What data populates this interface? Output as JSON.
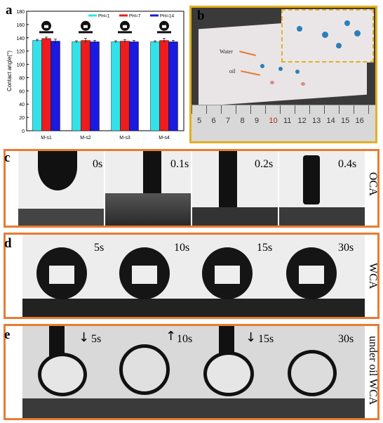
{
  "panel_a": {
    "letter": "a",
    "chart_data": {
      "type": "bar",
      "categories": [
        "M-s1",
        "M-s2",
        "M-s3",
        "M-s4"
      ],
      "series": [
        {
          "name": "PH=1",
          "color": "#33e1e8",
          "values": [
            136,
            134,
            134,
            134
          ],
          "errors": [
            1.5,
            1.5,
            1.5,
            1.5
          ]
        },
        {
          "name": "PH=7",
          "color": "#ee1c1c",
          "values": [
            139,
            136,
            135,
            136
          ],
          "errors": [
            2,
            3,
            2,
            3
          ]
        },
        {
          "name": "PH=14",
          "color": "#1a1ae0",
          "values": [
            135,
            134,
            134,
            134
          ],
          "errors": [
            3,
            2,
            2,
            2
          ]
        }
      ],
      "ylabel": "Contact angle(°)",
      "ylim": [
        0,
        180
      ],
      "yticks": [
        0,
        20,
        40,
        60,
        80,
        100,
        120,
        140,
        160,
        180
      ],
      "legend_position": "top-right"
    }
  },
  "panel_b": {
    "letter": "b",
    "water_label": "Water",
    "oil_label": "oil",
    "ruler_numbers": [
      "5",
      "6",
      "7",
      "8",
      "9",
      "10",
      "11",
      "12",
      "13",
      "14",
      "15",
      "16"
    ]
  },
  "panel_c": {
    "letter": "c",
    "times": [
      "0s",
      "0.1s",
      "0.2s",
      "0.4s"
    ],
    "side_label": "OCA"
  },
  "panel_d": {
    "letter": "d",
    "times": [
      "5s",
      "10s",
      "15s",
      "30s"
    ],
    "side_label": "WCA"
  },
  "panel_e": {
    "letter": "e",
    "times": [
      "5s",
      "10s",
      "15s",
      "30s"
    ],
    "arrows": [
      "↓",
      "↑",
      "↓",
      ""
    ],
    "side_label": "under oil WCA"
  }
}
